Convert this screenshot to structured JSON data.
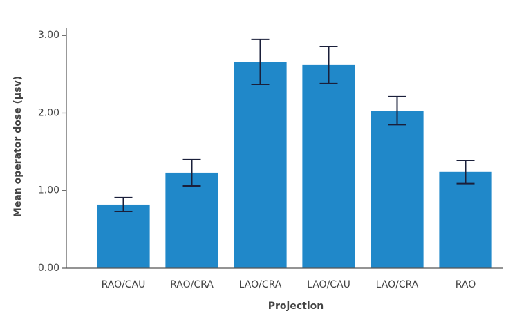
{
  "chart_data": {
    "type": "bar",
    "y_label": "Mean operator dose (μsv)",
    "x_label": "Projection",
    "categories": [
      "RAO/CAU",
      "RAO/CRA",
      "LAO/CRA",
      "LAO/CAU",
      "LAO/CRA",
      "RAO"
    ],
    "values": [
      0.82,
      1.23,
      2.66,
      2.62,
      2.03,
      1.24
    ],
    "errors": [
      0.09,
      0.17,
      0.29,
      0.24,
      0.18,
      0.15
    ],
    "color": "#2088c9",
    "error_color": "#1a1f3a",
    "ylim": [
      0,
      3.1
    ],
    "yticks": [
      {
        "value": 0,
        "label": "0.00"
      },
      {
        "value": 1,
        "label": "1.00"
      },
      {
        "value": 2,
        "label": "2.00"
      },
      {
        "value": 3,
        "label": "3.00"
      }
    ]
  }
}
